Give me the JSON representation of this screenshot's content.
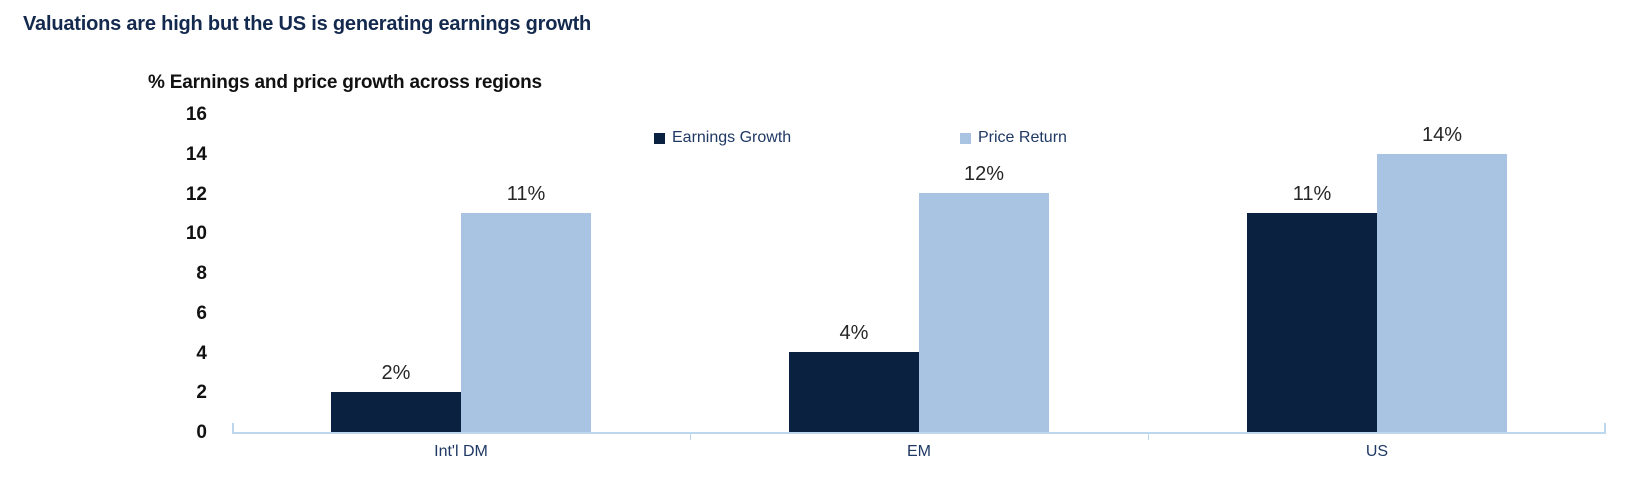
{
  "header": {
    "title": "Valuations are high but the US is generating earnings growth"
  },
  "chart_data": {
    "type": "bar",
    "title": "% Earnings and price growth across regions",
    "categories": [
      "Int'l DM",
      "EM",
      "US"
    ],
    "series": [
      {
        "name": "Earnings Growth",
        "color": "#0a2140",
        "values": [
          2,
          4,
          11
        ],
        "labels": [
          "2%",
          "4%",
          "11%"
        ]
      },
      {
        "name": "Price Return",
        "color": "#a9c3e3",
        "values": [
          11,
          12,
          14
        ],
        "labels": [
          "11%",
          "12%",
          "14%"
        ]
      }
    ],
    "ylabel": "",
    "xlabel": "",
    "ylim": [
      0,
      16
    ],
    "yticks": [
      0,
      2,
      4,
      6,
      8,
      10,
      12,
      14,
      16
    ],
    "grid": false,
    "legend_position": "top",
    "colors": {
      "title": "#13294e",
      "axis_line": "#bdd7ee",
      "category_text": "#1f3864",
      "legend_text": "#1f3864",
      "data_label_text": "#262626"
    }
  }
}
